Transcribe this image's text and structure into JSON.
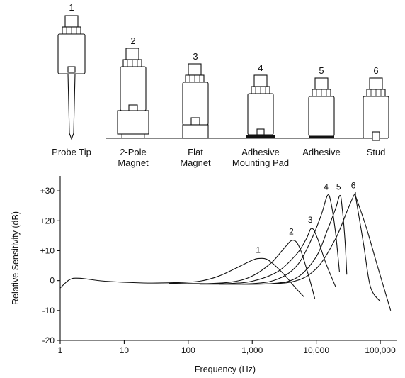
{
  "mounts": [
    {
      "number": "1",
      "caption_lines": [
        "Probe Tip"
      ],
      "icon": "probe-tip-sensor-icon"
    },
    {
      "number": "2",
      "caption_lines": [
        "2-Pole",
        "Magnet"
      ],
      "icon": "two-pole-magnet-sensor-icon"
    },
    {
      "number": "3",
      "caption_lines": [
        "Flat",
        "Magnet"
      ],
      "icon": "flat-magnet-sensor-icon"
    },
    {
      "number": "4",
      "caption_lines": [
        "Adhesive",
        "Mounting Pad"
      ],
      "icon": "adhesive-pad-sensor-icon"
    },
    {
      "number": "5",
      "caption_lines": [
        "Adhesive"
      ],
      "icon": "adhesive-sensor-icon"
    },
    {
      "number": "6",
      "caption_lines": [
        "Stud"
      ],
      "icon": "stud-sensor-icon"
    }
  ],
  "chart_data": {
    "type": "line",
    "title": "",
    "xlabel": "Frequency (Hz)",
    "ylabel": "Relative Sensitivity (dB)",
    "xscale": "log",
    "xlim": [
      1,
      150000
    ],
    "ylim": [
      -20,
      35
    ],
    "x_ticks": [
      1,
      10,
      100,
      1000,
      10000,
      100000
    ],
    "x_tick_labels": [
      "1",
      "10",
      "100",
      "1,000",
      "10,000",
      "100,000"
    ],
    "y_ticks": [
      30,
      20,
      10,
      0,
      -10,
      -20
    ],
    "y_tick_labels": [
      "+30",
      "+20",
      "+10",
      "0",
      "-10",
      "-20"
    ],
    "grid": false,
    "series": [
      {
        "name": "1",
        "points": [
          [
            1,
            -2.5
          ],
          [
            1.4,
            0.3
          ],
          [
            2,
            0.8
          ],
          [
            5,
            -0.2
          ],
          [
            20,
            -0.8
          ],
          [
            60,
            -0.7
          ],
          [
            150,
            -0.2
          ],
          [
            300,
            1.5
          ],
          [
            600,
            4.5
          ],
          [
            1000,
            6.8
          ],
          [
            1300,
            7.4
          ],
          [
            1800,
            6.8
          ],
          [
            3000,
            2.5
          ],
          [
            5000,
            -3
          ],
          [
            6500,
            -5.5
          ]
        ]
      },
      {
        "name": "2",
        "points": [
          [
            50,
            -0.9
          ],
          [
            200,
            -1
          ],
          [
            500,
            -0.4
          ],
          [
            1000,
            1.5
          ],
          [
            2000,
            6
          ],
          [
            3200,
            11
          ],
          [
            4300,
            13.5
          ],
          [
            5500,
            11
          ],
          [
            7500,
            2
          ],
          [
            9500,
            -6
          ]
        ]
      },
      {
        "name": "3",
        "points": [
          [
            100,
            -1
          ],
          [
            400,
            -1
          ],
          [
            1000,
            -0.2
          ],
          [
            2500,
            3
          ],
          [
            5000,
            9
          ],
          [
            7000,
            14
          ],
          [
            8500,
            17.5
          ],
          [
            10500,
            14
          ],
          [
            14000,
            6
          ],
          [
            20000,
            -2
          ]
        ]
      },
      {
        "name": "4",
        "points": [
          [
            150,
            -1.2
          ],
          [
            1000,
            -1
          ],
          [
            2500,
            0.5
          ],
          [
            5000,
            5
          ],
          [
            8500,
            14
          ],
          [
            12000,
            22
          ],
          [
            15000,
            28.5
          ],
          [
            17000,
            26
          ],
          [
            20000,
            16
          ],
          [
            23000,
            3
          ]
        ]
      },
      {
        "name": "5",
        "points": [
          [
            300,
            -1.2
          ],
          [
            2000,
            -1
          ],
          [
            5000,
            1
          ],
          [
            10000,
            8
          ],
          [
            15000,
            17
          ],
          [
            20000,
            24
          ],
          [
            23500,
            28.5
          ],
          [
            25500,
            24
          ],
          [
            28000,
            14
          ],
          [
            30000,
            2
          ]
        ]
      },
      {
        "name": "6",
        "points": [
          [
            700,
            -1.2
          ],
          [
            4000,
            -0.5
          ],
          [
            10000,
            4
          ],
          [
            20000,
            14
          ],
          [
            30000,
            23
          ],
          [
            40000,
            29
          ],
          [
            42000,
            27
          ],
          [
            55000,
            12
          ],
          [
            70000,
            -2
          ],
          [
            100000,
            -7
          ]
        ]
      },
      {
        "name": "",
        "points": [
          [
            40000,
            29
          ],
          [
            60000,
            18
          ],
          [
            90000,
            5
          ],
          [
            120000,
            -4
          ],
          [
            145000,
            -10
          ]
        ]
      }
    ]
  }
}
